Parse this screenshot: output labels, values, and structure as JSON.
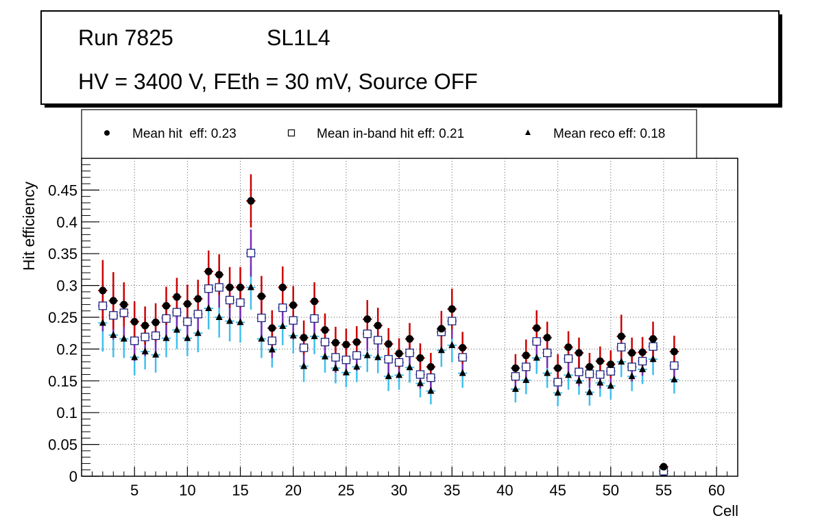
{
  "header": {
    "run": "Run 7825",
    "layer": "SL1L4",
    "conditions": "HV = 3400 V, FEth = 30 mV, Source OFF"
  },
  "chart_data": {
    "type": "scatter",
    "title": "Run 7825 SL1L4 — HV = 3400 V, FEth = 30 mV, Source OFF",
    "xlabel": "Cell",
    "ylabel": "Hit efficiency",
    "xlim": [
      0,
      62
    ],
    "ylim": [
      0,
      0.5
    ],
    "grid": true,
    "legend_position": "top",
    "x_ticks": [
      5,
      10,
      15,
      20,
      25,
      30,
      35,
      40,
      45,
      50,
      55,
      60
    ],
    "y_ticks": [
      0,
      0.05,
      0.1,
      0.15,
      0.2,
      0.25,
      0.3,
      0.35,
      0.4,
      0.45
    ],
    "x_tick_labels": [
      "5",
      "10",
      "15",
      "20",
      "25",
      "30",
      "35",
      "40",
      "45",
      "50",
      "55",
      "60"
    ],
    "y_tick_labels": [
      "0",
      "0.05",
      "0.1",
      "0.15",
      "0.2",
      "0.25",
      "0.3",
      "0.35",
      "0.4",
      "0.45"
    ],
    "series": [
      {
        "name": "Mean hit  eff: 0.23",
        "marker": "circle",
        "marker_color": "#000000",
        "error_color": "#cc0000",
        "points": [
          [
            2,
            0.292,
            0.048
          ],
          [
            3,
            0.276,
            0.045
          ],
          [
            4,
            0.27,
            0.035
          ],
          [
            5,
            0.243,
            0.032
          ],
          [
            6,
            0.237,
            0.03
          ],
          [
            7,
            0.242,
            0.03
          ],
          [
            8,
            0.268,
            0.03
          ],
          [
            9,
            0.282,
            0.03
          ],
          [
            10,
            0.271,
            0.03
          ],
          [
            11,
            0.279,
            0.03
          ],
          [
            12,
            0.322,
            0.033
          ],
          [
            13,
            0.317,
            0.032
          ],
          [
            14,
            0.297,
            0.032
          ],
          [
            15,
            0.297,
            0.032
          ],
          [
            16,
            0.433,
            0.042
          ],
          [
            17,
            0.283,
            0.032
          ],
          [
            18,
            0.233,
            0.028
          ],
          [
            19,
            0.297,
            0.033
          ],
          [
            20,
            0.269,
            0.03
          ],
          [
            21,
            0.218,
            0.027
          ],
          [
            22,
            0.275,
            0.03
          ],
          [
            23,
            0.23,
            0.026
          ],
          [
            24,
            0.21,
            0.025
          ],
          [
            25,
            0.207,
            0.025
          ],
          [
            26,
            0.211,
            0.025
          ],
          [
            27,
            0.247,
            0.03
          ],
          [
            28,
            0.237,
            0.028
          ],
          [
            29,
            0.208,
            0.025
          ],
          [
            30,
            0.193,
            0.024
          ],
          [
            31,
            0.216,
            0.025
          ],
          [
            32,
            0.186,
            0.023
          ],
          [
            33,
            0.172,
            0.022
          ],
          [
            34,
            0.232,
            0.028
          ],
          [
            35,
            0.263,
            0.032
          ],
          [
            36,
            0.202,
            0.025
          ],
          [
            41,
            0.17,
            0.022
          ],
          [
            42,
            0.19,
            0.025
          ],
          [
            43,
            0.233,
            0.028
          ],
          [
            44,
            0.218,
            0.025
          ],
          [
            45,
            0.17,
            0.022
          ],
          [
            46,
            0.203,
            0.025
          ],
          [
            47,
            0.194,
            0.024
          ],
          [
            48,
            0.172,
            0.022
          ],
          [
            49,
            0.181,
            0.023
          ],
          [
            50,
            0.176,
            0.022
          ],
          [
            51,
            0.22,
            0.034
          ],
          [
            52,
            0.194,
            0.024
          ],
          [
            53,
            0.195,
            0.024
          ],
          [
            54,
            0.216,
            0.027
          ],
          [
            55,
            0.015,
            0.005
          ],
          [
            56,
            0.196,
            0.025
          ]
        ]
      },
      {
        "name": "Mean in-band hit eff: 0.21",
        "marker": "open-square",
        "marker_color": "#1a237e",
        "error_color": "#7a2cb8",
        "points": [
          [
            2,
            0.268,
            0.04
          ],
          [
            3,
            0.253,
            0.038
          ],
          [
            4,
            0.257,
            0.037
          ],
          [
            5,
            0.213,
            0.032
          ],
          [
            6,
            0.219,
            0.03
          ],
          [
            7,
            0.221,
            0.03
          ],
          [
            8,
            0.248,
            0.03
          ],
          [
            9,
            0.258,
            0.03
          ],
          [
            10,
            0.243,
            0.03
          ],
          [
            11,
            0.255,
            0.03
          ],
          [
            12,
            0.295,
            0.032
          ],
          [
            13,
            0.297,
            0.032
          ],
          [
            14,
            0.277,
            0.032
          ],
          [
            15,
            0.273,
            0.032
          ],
          [
            16,
            0.351,
            0.037
          ],
          [
            17,
            0.249,
            0.03
          ],
          [
            18,
            0.213,
            0.027
          ],
          [
            19,
            0.265,
            0.03
          ],
          [
            20,
            0.245,
            0.03
          ],
          [
            21,
            0.202,
            0.025
          ],
          [
            22,
            0.248,
            0.03
          ],
          [
            23,
            0.211,
            0.025
          ],
          [
            24,
            0.187,
            0.024
          ],
          [
            25,
            0.183,
            0.024
          ],
          [
            26,
            0.19,
            0.024
          ],
          [
            27,
            0.224,
            0.027
          ],
          [
            28,
            0.214,
            0.026
          ],
          [
            29,
            0.184,
            0.024
          ],
          [
            30,
            0.179,
            0.023
          ],
          [
            31,
            0.194,
            0.024
          ],
          [
            32,
            0.16,
            0.022
          ],
          [
            33,
            0.155,
            0.021
          ],
          [
            34,
            0.227,
            0.027
          ],
          [
            35,
            0.244,
            0.028
          ],
          [
            36,
            0.187,
            0.024
          ],
          [
            41,
            0.157,
            0.021
          ],
          [
            42,
            0.172,
            0.023
          ],
          [
            43,
            0.212,
            0.026
          ],
          [
            44,
            0.194,
            0.024
          ],
          [
            45,
            0.148,
            0.02
          ],
          [
            46,
            0.185,
            0.024
          ],
          [
            47,
            0.164,
            0.022
          ],
          [
            48,
            0.161,
            0.022
          ],
          [
            49,
            0.16,
            0.022
          ],
          [
            50,
            0.165,
            0.022
          ],
          [
            51,
            0.203,
            0.025
          ],
          [
            52,
            0.172,
            0.023
          ],
          [
            53,
            0.181,
            0.023
          ],
          [
            54,
            0.204,
            0.025
          ],
          [
            55,
            0.008,
            0.004
          ],
          [
            56,
            0.174,
            0.023
          ]
        ]
      },
      {
        "name": "Mean reco eff: 0.18",
        "marker": "triangle",
        "marker_color": "#000000",
        "error_color": "#3fbfef",
        "points": [
          [
            2,
            0.241,
            0.045
          ],
          [
            3,
            0.222,
            0.035
          ],
          [
            4,
            0.216,
            0.03
          ],
          [
            5,
            0.187,
            0.028
          ],
          [
            6,
            0.196,
            0.028
          ],
          [
            7,
            0.191,
            0.028
          ],
          [
            8,
            0.217,
            0.03
          ],
          [
            9,
            0.23,
            0.03
          ],
          [
            10,
            0.217,
            0.028
          ],
          [
            11,
            0.225,
            0.03
          ],
          [
            12,
            0.264,
            0.033
          ],
          [
            13,
            0.25,
            0.032
          ],
          [
            14,
            0.244,
            0.032
          ],
          [
            15,
            0.242,
            0.032
          ],
          [
            16,
            0.297,
            0.035
          ],
          [
            17,
            0.216,
            0.03
          ],
          [
            18,
            0.199,
            0.028
          ],
          [
            19,
            0.236,
            0.03
          ],
          [
            20,
            0.221,
            0.028
          ],
          [
            21,
            0.173,
            0.025
          ],
          [
            22,
            0.22,
            0.028
          ],
          [
            23,
            0.188,
            0.025
          ],
          [
            24,
            0.17,
            0.024
          ],
          [
            25,
            0.163,
            0.023
          ],
          [
            26,
            0.172,
            0.024
          ],
          [
            27,
            0.19,
            0.026
          ],
          [
            28,
            0.187,
            0.025
          ],
          [
            29,
            0.157,
            0.023
          ],
          [
            30,
            0.159,
            0.023
          ],
          [
            31,
            0.171,
            0.024
          ],
          [
            32,
            0.146,
            0.022
          ],
          [
            33,
            0.134,
            0.021
          ],
          [
            34,
            0.198,
            0.026
          ],
          [
            35,
            0.206,
            0.027
          ],
          [
            36,
            0.162,
            0.023
          ],
          [
            41,
            0.137,
            0.021
          ],
          [
            42,
            0.151,
            0.022
          ],
          [
            43,
            0.186,
            0.025
          ],
          [
            44,
            0.162,
            0.023
          ],
          [
            45,
            0.131,
            0.021
          ],
          [
            46,
            0.159,
            0.023
          ],
          [
            47,
            0.15,
            0.022
          ],
          [
            48,
            0.132,
            0.021
          ],
          [
            49,
            0.147,
            0.022
          ],
          [
            50,
            0.142,
            0.021
          ],
          [
            51,
            0.18,
            0.024
          ],
          [
            52,
            0.157,
            0.023
          ],
          [
            53,
            0.168,
            0.023
          ],
          [
            54,
            0.184,
            0.025
          ],
          [
            55,
            0.004,
            0.003
          ],
          [
            56,
            0.152,
            0.022
          ]
        ]
      }
    ]
  }
}
